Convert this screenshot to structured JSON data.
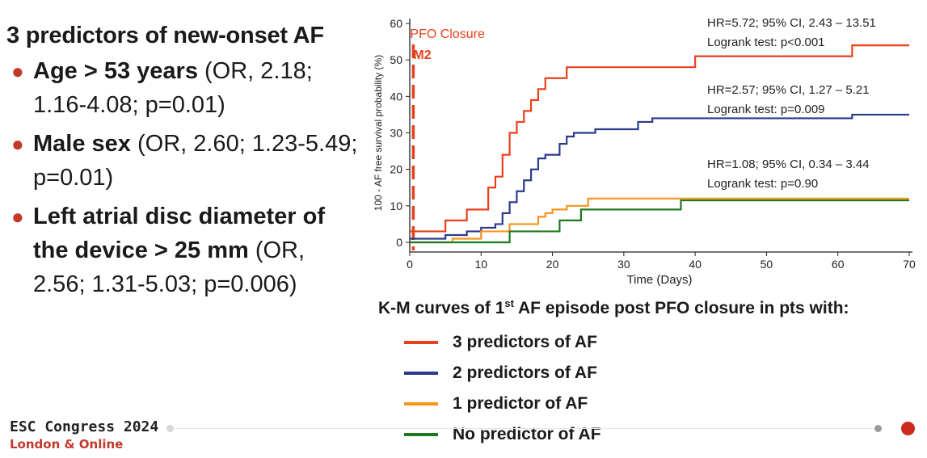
{
  "slide": {
    "heading": "3 predictors of new-onset AF",
    "predictors": [
      {
        "bold": "Age > 53 years",
        "rest": " (OR, 2.18; 1.16-4.08; p=0.01)"
      },
      {
        "bold": "Male sex",
        "rest": " (OR, 2.60; 1.23-5.49; p=0.01)"
      },
      {
        "bold": "Left atrial disc diameter of the device > 25 mm",
        "rest": " (OR, 2.56; 1.31-5.03; p=0.006)"
      }
    ],
    "footer_line1": "ESC Congress 2024",
    "footer_line2": "London & Online",
    "caption_pre": "K-M curves of 1",
    "caption_sup": "st",
    "caption_post": " AF episode post PFO closure in pts with:"
  },
  "colors": {
    "accent": "#c0392b",
    "series": [
      "#e8401c",
      "#2b3a8c",
      "#f7941d",
      "#1e7a1e"
    ]
  },
  "chart_data": {
    "type": "line",
    "step": true,
    "xlabel": "Time (Days)",
    "ylabel": "100 - AF free survival probability (%)",
    "xlim": [
      0,
      70
    ],
    "ylim": [
      0,
      60
    ],
    "xticks": [
      0,
      10,
      20,
      30,
      40,
      50,
      60,
      70
    ],
    "yticks": [
      0,
      10,
      20,
      30,
      40,
      50,
      60
    ],
    "grid": false,
    "marker": {
      "x": 0.5,
      "label1": "PFO Closure",
      "label2": "M2"
    },
    "series": [
      {
        "name": "3 predictors of AF",
        "x": [
          0,
          5,
          8,
          11,
          12,
          13,
          14,
          15,
          16,
          17,
          18,
          19,
          22,
          40,
          62,
          70
        ],
        "y": [
          3,
          6,
          9,
          15,
          18,
          24,
          30,
          33,
          36,
          39,
          42,
          45,
          48,
          51,
          54,
          54
        ],
        "annotation": [
          "HR=5.72; 95% CI, 2.43 – 13.51",
          "Logrank test: p<0.001"
        ]
      },
      {
        "name": "2 predictors of AF",
        "x": [
          0,
          5,
          8,
          10,
          12,
          13,
          14,
          15,
          16,
          17,
          18,
          19,
          21,
          22,
          23,
          26,
          32,
          34,
          62,
          70
        ],
        "y": [
          1,
          2,
          3,
          4,
          5,
          8,
          11,
          14,
          17,
          20,
          23,
          24,
          27,
          29,
          30,
          31,
          33,
          34,
          35,
          35
        ],
        "annotation": [
          "HR=2.57; 95% CI, 1.27 – 5.21",
          "Logrank test: p=0.009"
        ]
      },
      {
        "name": "1 predictor of AF",
        "x": [
          0,
          6,
          10,
          14,
          18,
          19,
          20,
          22,
          25,
          70
        ],
        "y": [
          0,
          1,
          3,
          5,
          7,
          8,
          9,
          10,
          12,
          12
        ],
        "annotation": [
          "HR=1.08; 95% CI, 0.34 – 3.44",
          "Logrank test: p=0.90"
        ]
      },
      {
        "name": "No predictor of AF",
        "x": [
          0,
          7,
          14,
          21,
          24,
          38,
          70
        ],
        "y": [
          0,
          0,
          3,
          6,
          9,
          11.5,
          11.5
        ],
        "annotation": []
      }
    ]
  }
}
